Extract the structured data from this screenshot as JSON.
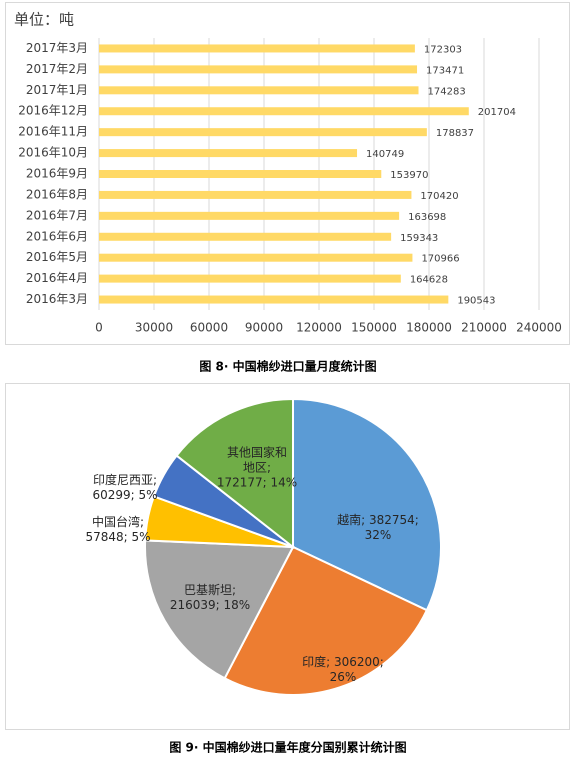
{
  "chart_data": [
    {
      "type": "hbar",
      "title": "单位：吨",
      "caption": "图 8· 中国棉纱进口量月度统计图",
      "categories": [
        "2017年3月",
        "2017年2月",
        "2017年1月",
        "2016年12月",
        "2016年11月",
        "2016年10月",
        "2016年9月",
        "2016年8月",
        "2016年7月",
        "2016年6月",
        "2016年5月",
        "2016年4月",
        "2016年3月"
      ],
      "values": [
        172303,
        173471,
        174283,
        201704,
        178837,
        140749,
        153970,
        170420,
        163698,
        159343,
        170966,
        164628,
        190543
      ],
      "color": "#ffd966",
      "xlim": [
        0,
        240000
      ],
      "xticks": [
        0,
        30000,
        60000,
        90000,
        120000,
        150000,
        180000,
        210000,
        240000
      ],
      "grid": true
    },
    {
      "type": "pie",
      "caption": "图 9· 中国棉纱进口量年度分国别累计统计图",
      "categories": [
        "越南",
        "印度",
        "巴基斯坦",
        "中国台湾",
        "印度尼西亚",
        "其他国家和地区"
      ],
      "values": [
        382754,
        306200,
        216039,
        57848,
        60299,
        172177
      ],
      "colors": [
        "#5b9bd5",
        "#ed7d31",
        "#a5a5a5",
        "#ffc000",
        "#4472c4",
        "#70ad47"
      ],
      "data_labels": [
        [
          "越南; 382754;",
          "32%"
        ],
        [
          "印度; 306200;",
          "26%"
        ],
        [
          "巴基斯坦;",
          "216039; 18%"
        ],
        [
          "中国台湾;",
          "57848; 5%"
        ],
        [
          "印度尼西亚;",
          "60299; 5%"
        ],
        [
          "其他国家和",
          "地区;",
          "172177; 14%"
        ]
      ]
    }
  ]
}
